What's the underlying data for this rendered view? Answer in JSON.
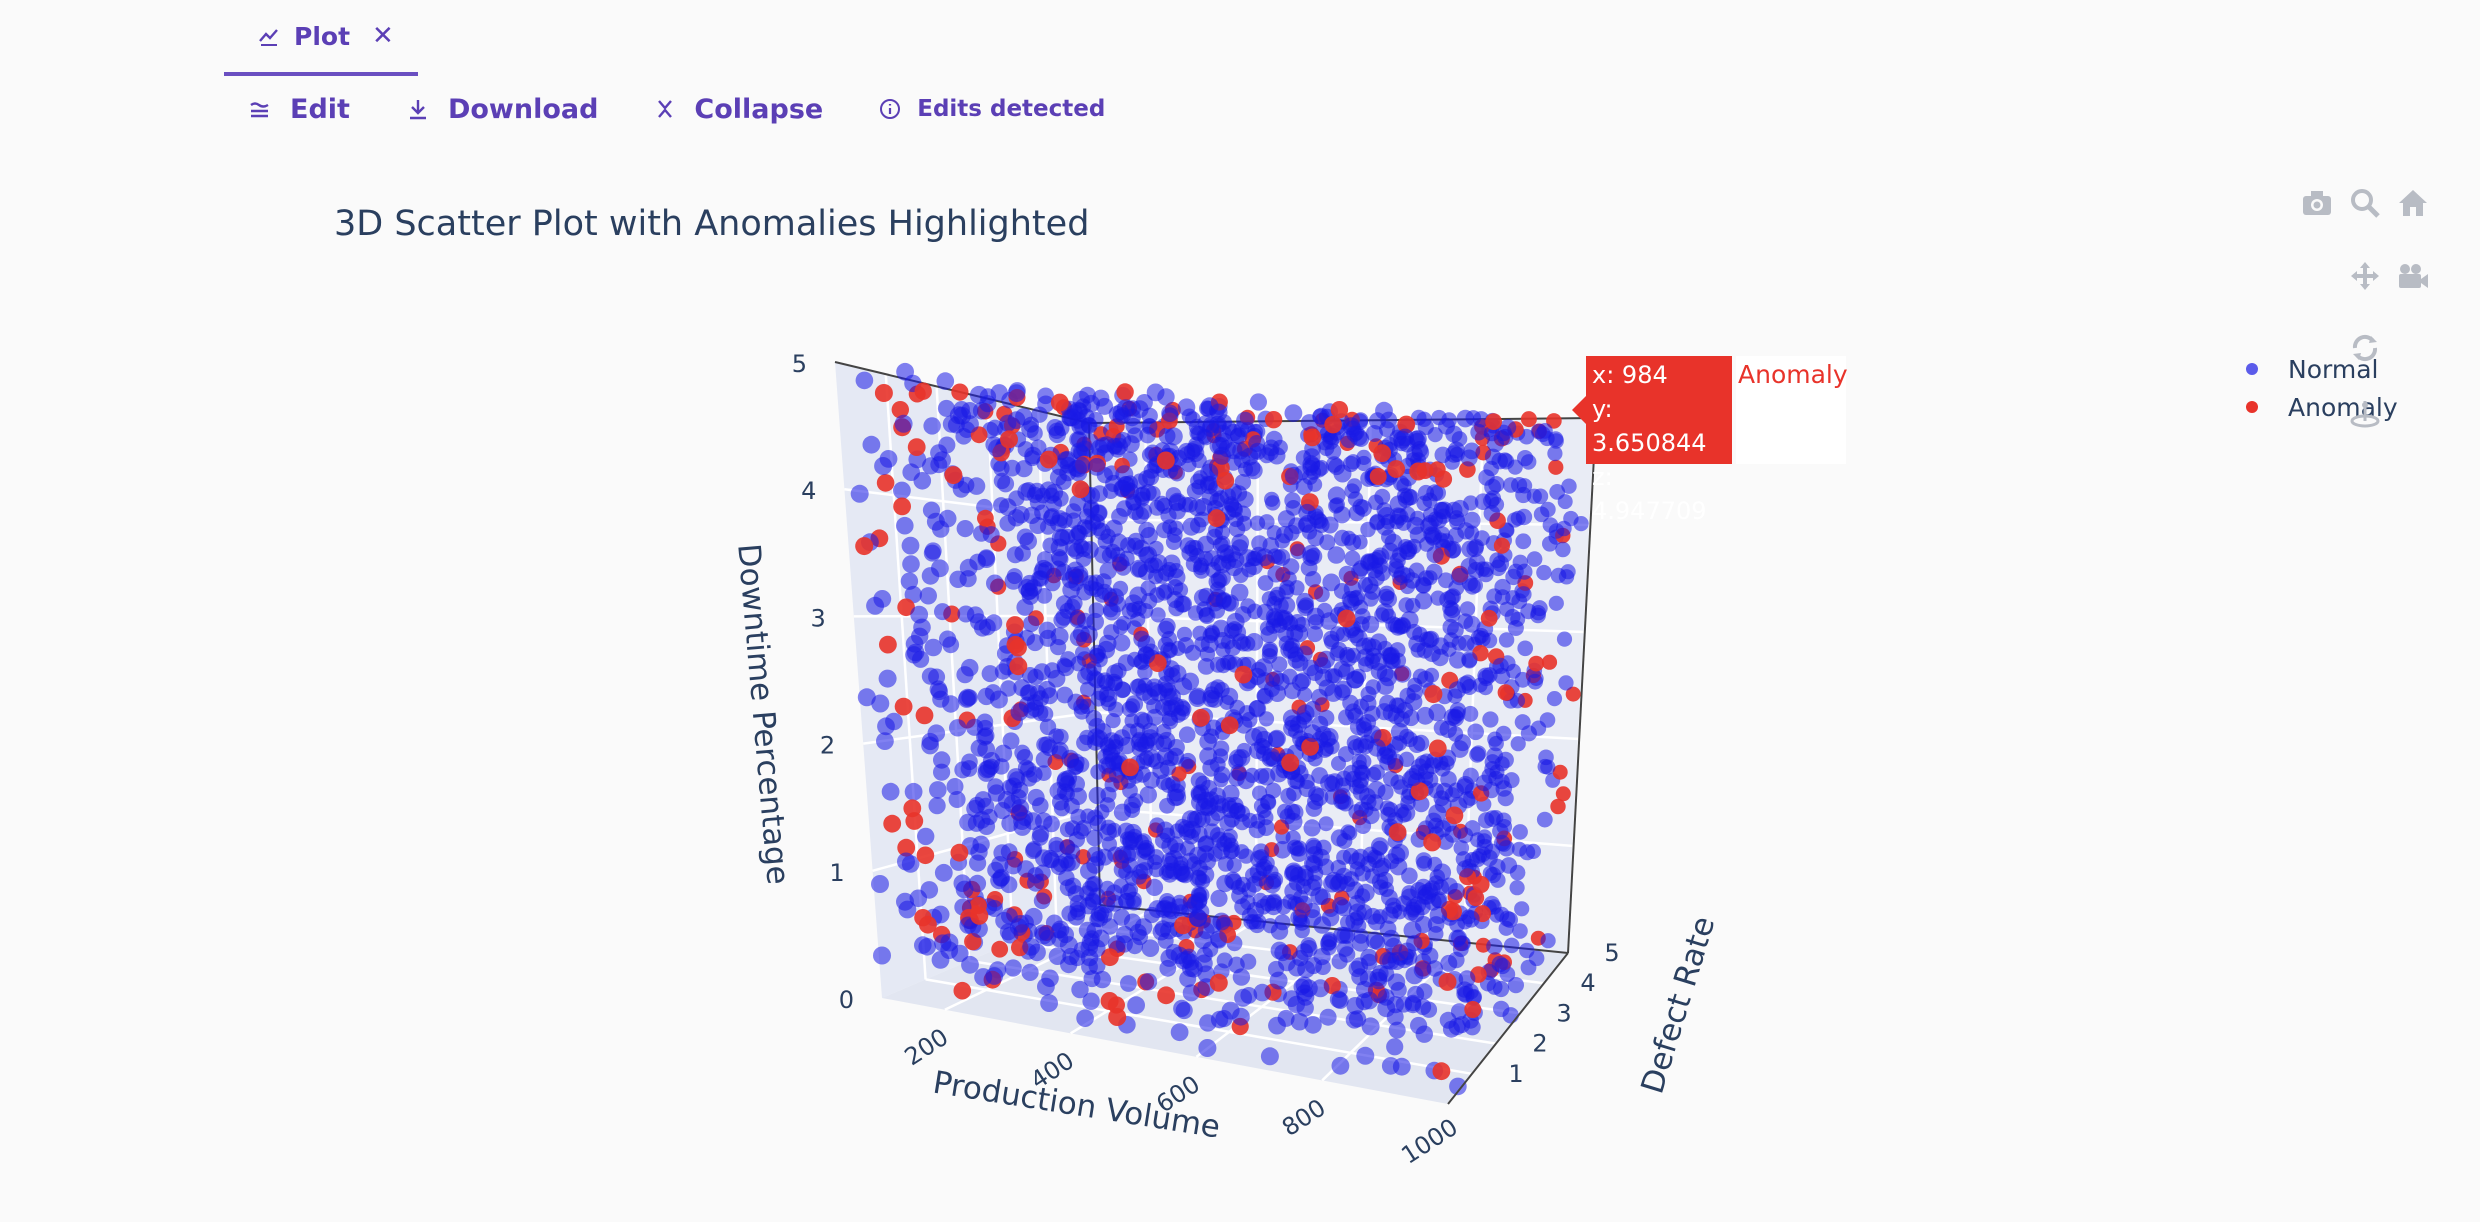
{
  "tab": {
    "label": "Plot",
    "icon": "chart-icon",
    "close_icon": "close-icon"
  },
  "toolbar": {
    "edit_label": "Edit",
    "download_label": "Download",
    "collapse_label": "Collapse",
    "edits_label": "Edits detected"
  },
  "colors": {
    "accent": "#5b3fb5",
    "normal": "#1a1ae6",
    "anomaly": "#e8332a",
    "text": "#2a3f5f"
  },
  "chart_data": {
    "type": "scatter3d",
    "title": "3D Scatter Plot with Anomalies Highlighted",
    "x_axis": {
      "label": "Production Volume",
      "range": [
        100,
        1000
      ],
      "ticks": [
        "200",
        "400",
        "600",
        "800",
        "1000"
      ]
    },
    "y_axis": {
      "label": "Defect Rate",
      "range": [
        0,
        5
      ],
      "ticks": [
        "1",
        "2",
        "3",
        "4",
        "5"
      ]
    },
    "z_axis": {
      "label": "Downtime Percentage",
      "range": [
        0,
        5
      ],
      "ticks": [
        "0",
        "1",
        "2",
        "3",
        "4",
        "5"
      ]
    },
    "series": [
      {
        "name": "Normal",
        "color": "#1a1ae6",
        "count": 2600,
        "distribution": "uniform over axis ranges"
      },
      {
        "name": "Anomaly",
        "color": "#e8332a",
        "count": 260,
        "distribution": "near edges of box"
      }
    ],
    "hover": {
      "series": "Anomaly",
      "x": "x: 984",
      "y": "y: 3.650844",
      "z": "z: 4.947709"
    },
    "legend_position": "top-right"
  }
}
